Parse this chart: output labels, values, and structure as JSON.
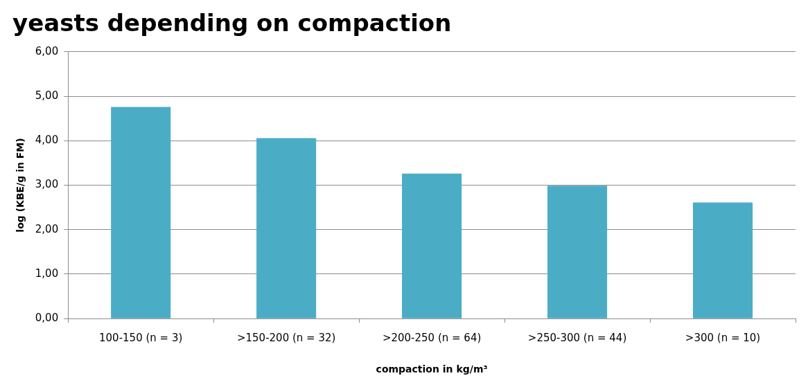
{
  "chart_data": {
    "type": "bar",
    "title": "yeasts depending on compaction",
    "xlabel": "compaction in kg/m³",
    "ylabel": "log (KBE/g in FM)",
    "categories": [
      "100-150 (n = 3)",
      ">150-200 (n = 32)",
      ">200-250 (n = 64)",
      ">250-300 (n = 44)",
      ">300 (n = 10)"
    ],
    "values": [
      4.76,
      4.06,
      3.26,
      2.99,
      2.61
    ],
    "color": "#4bacc6",
    "ylim": [
      0,
      6
    ],
    "yticks": [
      {
        "value": 0,
        "label": "0,00"
      },
      {
        "value": 1,
        "label": "1,00"
      },
      {
        "value": 2,
        "label": "2,00"
      },
      {
        "value": 3,
        "label": "3,00"
      },
      {
        "value": 4,
        "label": "4,00"
      },
      {
        "value": 5,
        "label": "5,00"
      },
      {
        "value": 6,
        "label": "6,00"
      }
    ],
    "grid": "y"
  }
}
